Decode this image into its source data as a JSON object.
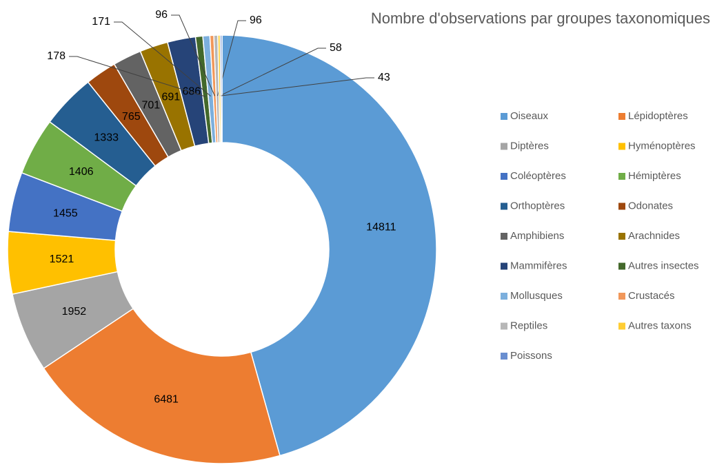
{
  "chart_data": {
    "type": "donut",
    "title": "Nombre d'observations par groupes taxonomiques",
    "categories": [
      "Oiseaux",
      "Lépidoptères",
      "Diptères",
      "Hyménoptères",
      "Coléoptères",
      "Hémiptères",
      "Orthoptères",
      "Odonates",
      "Amphibiens",
      "Arachnides",
      "Mammifères",
      "Autres insectes",
      "Mollusques",
      "Crustacés",
      "Reptiles",
      "Autres taxons",
      "Poissons"
    ],
    "values": [
      14811,
      6481,
      1952,
      1521,
      1455,
      1406,
      1333,
      765,
      701,
      691,
      686,
      178,
      171,
      96,
      96,
      58,
      43
    ],
    "colors": [
      "#5b9bd5",
      "#ed7d31",
      "#a5a5a5",
      "#ffc000",
      "#4472c4",
      "#70ad47",
      "#255e91",
      "#9e480e",
      "#636363",
      "#997300",
      "#264478",
      "#43682b",
      "#7cafdd",
      "#f1975a",
      "#b7b7b7",
      "#ffcd33",
      "#698ed0"
    ],
    "legend": "right"
  }
}
